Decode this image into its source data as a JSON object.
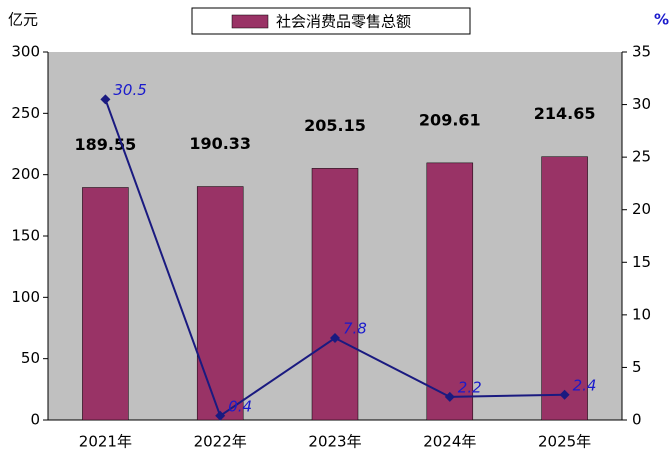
{
  "chart_data": {
    "type": "bar",
    "y_unit": "亿元",
    "y2_unit": "%",
    "categories": [
      "2021年",
      "2022年",
      "2023年",
      "2024年",
      "2025年"
    ],
    "series": [
      {
        "name": "社会消费品零售总额",
        "color": "#993366",
        "values": [
          189.55,
          190.33,
          205.15,
          209.61,
          214.65
        ]
      },
      {
        "type": "line",
        "axis": "y2",
        "color": "#1a1a80",
        "values": [
          30.5,
          0.4,
          7.8,
          2.2,
          2.4
        ]
      }
    ],
    "ylim": [
      0,
      300
    ],
    "yticks": [
      0,
      50,
      100,
      150,
      200,
      250,
      300
    ],
    "y2lim": [
      0,
      35
    ],
    "y2ticks": [
      0,
      5,
      10,
      15,
      20,
      25,
      30,
      35
    ],
    "plot_background": "#c0c0c0"
  }
}
